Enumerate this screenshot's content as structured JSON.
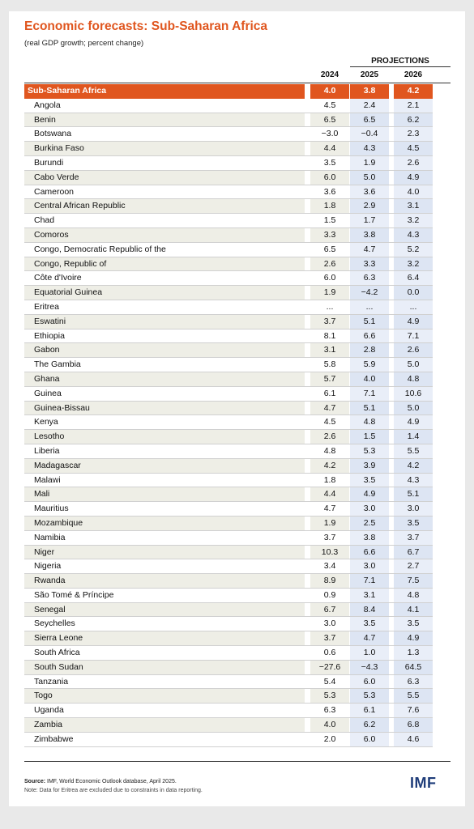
{
  "title": "Economic forecasts: Sub-Saharan Africa",
  "subtitle": "(real GDP growth; percent change)",
  "projections_label": "PROJECTIONS",
  "source_label": "Source:",
  "source_text": "IMF, World Economic Outlook database, April 2025.",
  "note": "Note: Data for Eritrea are excluded due to constraints in data reporting.",
  "logo": "IMF",
  "colors": {
    "accent": "#e0561f",
    "projection_bg": "#e9eef8",
    "logo": "#1f3d7a"
  },
  "chart_data": {
    "type": "table",
    "title": "Economic forecasts: Sub-Saharan Africa",
    "columns": [
      "2024",
      "2025",
      "2026"
    ],
    "rows": [
      {
        "name": "Sub-Saharan Africa",
        "values": [
          "4.0",
          "3.8",
          "4.2"
        ],
        "region": true
      },
      {
        "name": "Angola",
        "values": [
          "4.5",
          "2.4",
          "2.1"
        ]
      },
      {
        "name": "Benin",
        "values": [
          "6.5",
          "6.5",
          "6.2"
        ]
      },
      {
        "name": "Botswana",
        "values": [
          "−3.0",
          "−0.4",
          "2.3"
        ]
      },
      {
        "name": "Burkina Faso",
        "values": [
          "4.4",
          "4.3",
          "4.5"
        ]
      },
      {
        "name": "Burundi",
        "values": [
          "3.5",
          "1.9",
          "2.6"
        ]
      },
      {
        "name": "Cabo Verde",
        "values": [
          "6.0",
          "5.0",
          "4.9"
        ]
      },
      {
        "name": "Cameroon",
        "values": [
          "3.6",
          "3.6",
          "4.0"
        ]
      },
      {
        "name": "Central African Republic",
        "values": [
          "1.8",
          "2.9",
          "3.1"
        ]
      },
      {
        "name": "Chad",
        "values": [
          "1.5",
          "1.7",
          "3.2"
        ]
      },
      {
        "name": "Comoros",
        "values": [
          "3.3",
          "3.8",
          "4.3"
        ]
      },
      {
        "name": "Congo, Democratic Republic of the",
        "values": [
          "6.5",
          "4.7",
          "5.2"
        ]
      },
      {
        "name": "Congo, Republic of",
        "values": [
          "2.6",
          "3.3",
          "3.2"
        ]
      },
      {
        "name": "Côte d'Ivoire",
        "values": [
          "6.0",
          "6.3",
          "6.4"
        ]
      },
      {
        "name": "Equatorial Guinea",
        "values": [
          "1.9",
          "−4.2",
          "0.0"
        ]
      },
      {
        "name": "Eritrea",
        "values": [
          "...",
          "...",
          "..."
        ]
      },
      {
        "name": "Eswatini",
        "values": [
          "3.7",
          "5.1",
          "4.9"
        ]
      },
      {
        "name": "Ethiopia",
        "values": [
          "8.1",
          "6.6",
          "7.1"
        ]
      },
      {
        "name": "Gabon",
        "values": [
          "3.1",
          "2.8",
          "2.6"
        ]
      },
      {
        "name": "The Gambia",
        "values": [
          "5.8",
          "5.9",
          "5.0"
        ]
      },
      {
        "name": "Ghana",
        "values": [
          "5.7",
          "4.0",
          "4.8"
        ]
      },
      {
        "name": "Guinea",
        "values": [
          "6.1",
          "7.1",
          "10.6"
        ]
      },
      {
        "name": "Guinea-Bissau",
        "values": [
          "4.7",
          "5.1",
          "5.0"
        ]
      },
      {
        "name": "Kenya",
        "values": [
          "4.5",
          "4.8",
          "4.9"
        ]
      },
      {
        "name": "Lesotho",
        "values": [
          "2.6",
          "1.5",
          "1.4"
        ]
      },
      {
        "name": "Liberia",
        "values": [
          "4.8",
          "5.3",
          "5.5"
        ]
      },
      {
        "name": "Madagascar",
        "values": [
          "4.2",
          "3.9",
          "4.2"
        ]
      },
      {
        "name": "Malawi",
        "values": [
          "1.8",
          "3.5",
          "4.3"
        ]
      },
      {
        "name": "Mali",
        "values": [
          "4.4",
          "4.9",
          "5.1"
        ]
      },
      {
        "name": "Mauritius",
        "values": [
          "4.7",
          "3.0",
          "3.0"
        ]
      },
      {
        "name": "Mozambique",
        "values": [
          "1.9",
          "2.5",
          "3.5"
        ]
      },
      {
        "name": "Namibia",
        "values": [
          "3.7",
          "3.8",
          "3.7"
        ]
      },
      {
        "name": "Niger",
        "values": [
          "10.3",
          "6.6",
          "6.7"
        ]
      },
      {
        "name": "Nigeria",
        "values": [
          "3.4",
          "3.0",
          "2.7"
        ]
      },
      {
        "name": "Rwanda",
        "values": [
          "8.9",
          "7.1",
          "7.5"
        ]
      },
      {
        "name": "São Tomé & Príncipe",
        "values": [
          "0.9",
          "3.1",
          "4.8"
        ]
      },
      {
        "name": "Senegal",
        "values": [
          "6.7",
          "8.4",
          "4.1"
        ]
      },
      {
        "name": "Seychelles",
        "values": [
          "3.0",
          "3.5",
          "3.5"
        ]
      },
      {
        "name": "Sierra Leone",
        "values": [
          "3.7",
          "4.7",
          "4.9"
        ]
      },
      {
        "name": "South Africa",
        "values": [
          "0.6",
          "1.0",
          "1.3"
        ]
      },
      {
        "name": "South Sudan",
        "values": [
          "−27.6",
          "−4.3",
          "64.5"
        ]
      },
      {
        "name": "Tanzania",
        "values": [
          "5.4",
          "6.0",
          "6.3"
        ]
      },
      {
        "name": "Togo",
        "values": [
          "5.3",
          "5.3",
          "5.5"
        ]
      },
      {
        "name": "Uganda",
        "values": [
          "6.3",
          "6.1",
          "7.6"
        ]
      },
      {
        "name": "Zambia",
        "values": [
          "4.0",
          "6.2",
          "6.8"
        ]
      },
      {
        "name": "Zimbabwe",
        "values": [
          "2.0",
          "6.0",
          "4.6"
        ]
      }
    ]
  }
}
